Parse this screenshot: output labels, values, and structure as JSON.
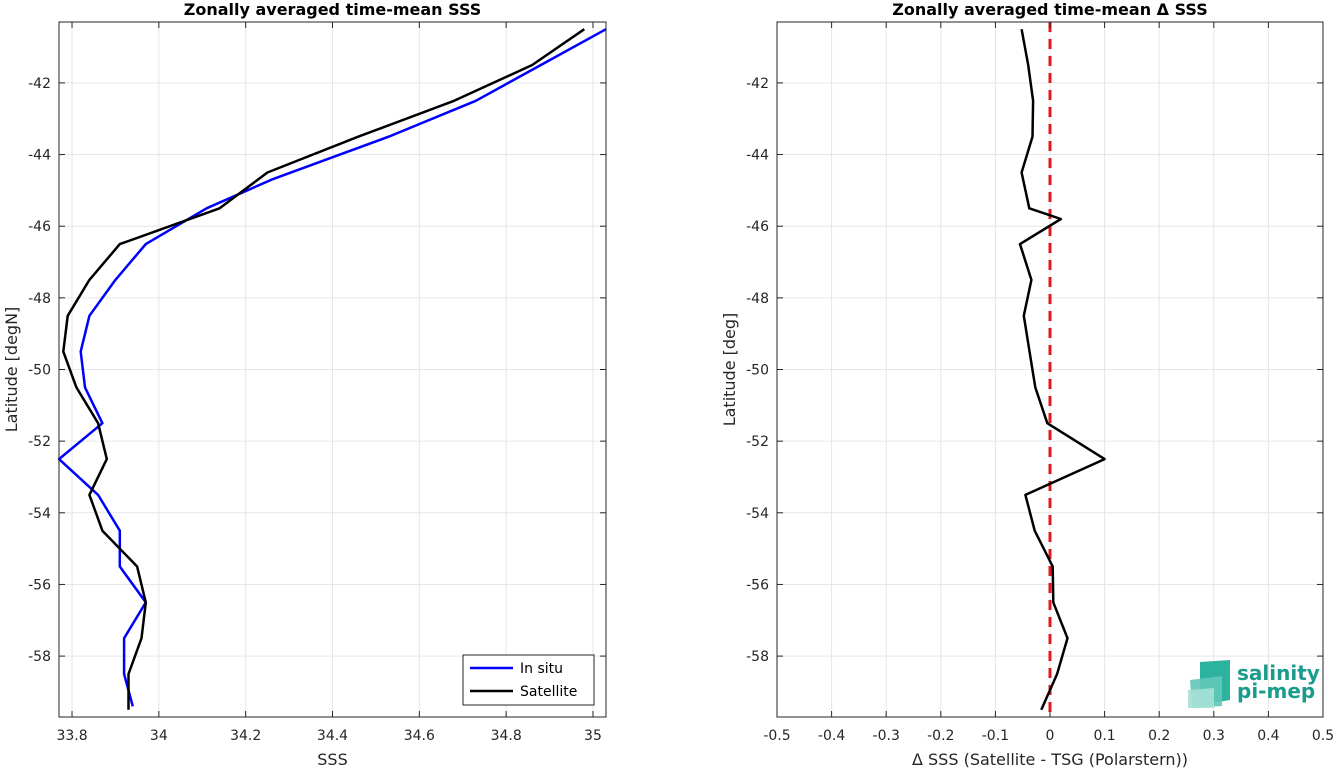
{
  "chart_data": [
    {
      "type": "line",
      "title": "Zonally averaged time-mean SSS",
      "xlabel": "SSS",
      "ylabel": "Latitude [degN]",
      "xlim": [
        33.77,
        35.03
      ],
      "ylim": [
        -59.7,
        -40.3
      ],
      "xticks": [
        33.8,
        34,
        34.2,
        34.4,
        34.6,
        34.8,
        35
      ],
      "xtick_labels": [
        "33.8",
        "34",
        "34.2",
        "34.4",
        "34.6",
        "34.8",
        "35"
      ],
      "yticks": [
        -42,
        -44,
        -46,
        -48,
        -50,
        -52,
        -54,
        -56,
        -58
      ],
      "ytick_labels": [
        "-42",
        "-44",
        "-46",
        "-48",
        "-50",
        "-52",
        "-54",
        "-56",
        "-58"
      ],
      "grid": true,
      "legend": "bottom-right",
      "series": [
        {
          "name": "In situ",
          "color": "#0000ff",
          "x": [
            35.03,
            34.88,
            34.73,
            34.53,
            34.26,
            34.11,
            33.97,
            33.9,
            33.84,
            33.82,
            33.83,
            33.87,
            33.77,
            33.86,
            33.91,
            33.91,
            33.97,
            33.92,
            33.92,
            33.94
          ],
          "y": [
            -40.5,
            -41.5,
            -42.5,
            -43.5,
            -44.7,
            -45.5,
            -46.5,
            -47.5,
            -48.5,
            -49.5,
            -50.5,
            -51.5,
            -52.5,
            -53.5,
            -54.5,
            -55.5,
            -56.5,
            -57.5,
            -58.5,
            -59.4
          ]
        },
        {
          "name": "Satellite",
          "color": "#000000",
          "x": [
            34.98,
            34.86,
            34.68,
            34.46,
            34.25,
            34.14,
            33.91,
            33.84,
            33.79,
            33.78,
            33.81,
            33.86,
            33.88,
            33.84,
            33.87,
            33.95,
            33.97,
            33.96,
            33.93,
            33.93
          ],
          "y": [
            -40.5,
            -41.5,
            -42.5,
            -43.5,
            -44.5,
            -45.5,
            -46.5,
            -47.5,
            -48.5,
            -49.5,
            -50.5,
            -51.5,
            -52.5,
            -53.5,
            -54.5,
            -55.5,
            -56.5,
            -57.5,
            -58.5,
            -59.5
          ]
        }
      ]
    },
    {
      "type": "line",
      "title": "Zonally averaged time-mean Δ SSS",
      "xlabel": "Δ SSS (Satellite - TSG (Polarstern))",
      "ylabel": "Latitude [deg]",
      "xlim": [
        -0.5,
        0.5
      ],
      "ylim": [
        -59.7,
        -40.3
      ],
      "xticks": [
        -0.5,
        -0.4,
        -0.3,
        -0.2,
        -0.1,
        0,
        0.1,
        0.2,
        0.3,
        0.4,
        0.5
      ],
      "xtick_labels": [
        "-0.5",
        "-0.4",
        "-0.3",
        "-0.2",
        "-0.1",
        "0",
        "0.1",
        "0.2",
        "0.3",
        "0.4",
        "0.5"
      ],
      "yticks": [
        -42,
        -44,
        -46,
        -48,
        -50,
        -52,
        -54,
        -56,
        -58
      ],
      "ytick_labels": [
        "-42",
        "-44",
        "-46",
        "-48",
        "-50",
        "-52",
        "-54",
        "-56",
        "-58"
      ],
      "grid": true,
      "reference_line": {
        "x": 0,
        "color": "#e31a1c",
        "style": "dashed"
      },
      "series": [
        {
          "color": "#000000",
          "x": [
            -0.052,
            -0.04,
            -0.031,
            -0.032,
            -0.052,
            -0.038,
            0.02,
            -0.055,
            -0.034,
            -0.048,
            -0.027,
            -0.005,
            0.1,
            -0.045,
            -0.028,
            0.005,
            0.006,
            0.032,
            0.013,
            -0.016
          ],
          "y": [
            -40.5,
            -41.5,
            -42.5,
            -43.5,
            -44.5,
            -45.5,
            -45.8,
            -46.5,
            -47.5,
            -48.5,
            -50.5,
            -51.5,
            -52.5,
            -53.5,
            -54.5,
            -55.5,
            -56.5,
            -57.5,
            -58.5,
            -59.5
          ]
        }
      ]
    }
  ],
  "logo": {
    "line1": "salinity",
    "line2": "pi-mep",
    "color": "#1a9c8c"
  }
}
